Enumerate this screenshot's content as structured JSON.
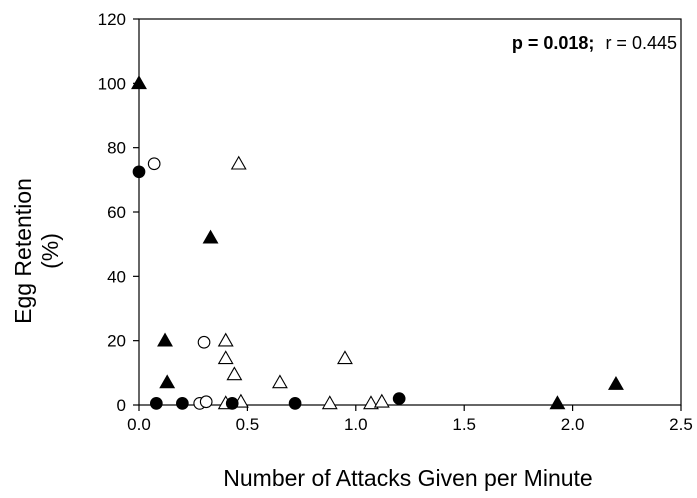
{
  "chart_data": {
    "type": "scatter",
    "title": "",
    "xlabel": "Number of Attacks Given per Minute",
    "ylabel_line1": "Egg Retention",
    "ylabel_line2": "(%)",
    "xlim": [
      0,
      2.5
    ],
    "ylim": [
      0,
      120
    ],
    "x_ticks": [
      "0.0",
      "0.5",
      "1.0",
      "1.5",
      "2.0",
      "2.5"
    ],
    "y_ticks": [
      "0",
      "20",
      "40",
      "60",
      "80",
      "100",
      "120"
    ],
    "x_tick_values": [
      0,
      0.5,
      1.0,
      1.5,
      2.0,
      2.5
    ],
    "y_tick_values": [
      0,
      20,
      40,
      60,
      80,
      100,
      120
    ],
    "grid": false,
    "annotation": {
      "p_text": "p = 0.018;",
      "r_text": "r = 0.445",
      "placement": "top-right"
    },
    "series": [
      {
        "marker": "filled-triangle",
        "x": [
          0.0,
          0.12,
          0.13,
          0.33,
          1.93,
          2.2
        ],
        "y": [
          100,
          20,
          7,
          52,
          0.5,
          6.5
        ]
      },
      {
        "marker": "open-triangle",
        "x": [
          0.4,
          0.4,
          0.44,
          0.46,
          0.47,
          0.4,
          0.65,
          0.88,
          0.95,
          1.07,
          1.12
        ],
        "y": [
          20,
          14.5,
          9.5,
          75,
          1,
          0.5,
          7,
          0.5,
          14.5,
          0.5,
          1
        ]
      },
      {
        "marker": "filled-circle",
        "x": [
          0.0,
          0.08,
          0.2,
          0.43,
          0.72,
          1.2
        ],
        "y": [
          72.5,
          0.5,
          0.5,
          0.5,
          0.5,
          2
        ]
      },
      {
        "marker": "open-circle",
        "x": [
          0.07,
          0.3,
          0.28,
          0.31
        ],
        "y": [
          75,
          19.5,
          0.5,
          1
        ]
      }
    ],
    "colors": {
      "marker": "#000000",
      "axis": "#000000",
      "background": "#ffffff"
    }
  }
}
